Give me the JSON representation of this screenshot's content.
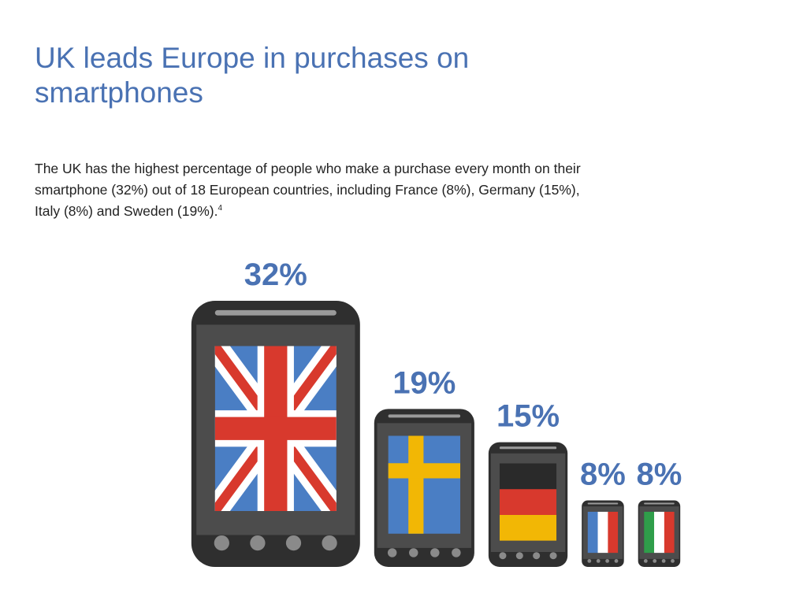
{
  "title": "UK leads Europe in purchases on smartphones",
  "description": {
    "text": "The UK has the highest percentage of people who make a purchase every month on their smartphone (32%) out of 18 European countries, including France (8%), Germany (15%), Italy (8%) and Sweden (19%).",
    "footnote": "4"
  },
  "colors": {
    "text": "#4a72b3",
    "phone_body": "#4c4c4c",
    "phone_frame": "#2f2f2f",
    "button": "#8a8a8a",
    "speaker": "#9a9a9a",
    "flag_blue": "#4a7ec4",
    "flag_red": "#d8392d",
    "flag_white": "#ffffff",
    "sweden_yellow": "#f2b705",
    "germany_black": "#2a2a2a",
    "germany_red": "#d8392d",
    "germany_gold": "#f2b705",
    "italy_green": "#2f9e4a"
  },
  "chart_data": {
    "type": "bar",
    "title": "",
    "xlabel": "",
    "ylabel": "",
    "categories": [
      "UK",
      "Sweden",
      "Germany",
      "France",
      "Italy"
    ],
    "flags": [
      "uk-flag",
      "sweden-flag",
      "germany-flag",
      "france-flag",
      "italy-flag"
    ],
    "values": [
      32,
      19,
      15,
      8,
      8
    ],
    "value_labels": [
      "32%",
      "19%",
      "15%",
      "8%",
      "8%"
    ],
    "legend": "none",
    "grid": false
  }
}
